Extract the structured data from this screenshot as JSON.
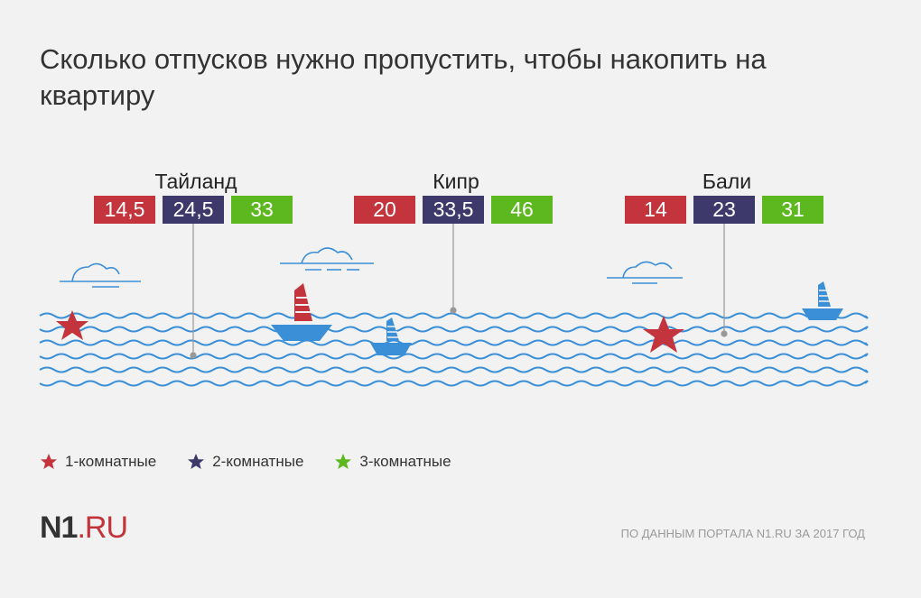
{
  "title": "Сколько отпусков нужно пропустить, чтобы накопить на квартиру",
  "colors": {
    "one_room": "#c4343c",
    "two_room": "#3d3a6b",
    "three_room": "#5cb81e",
    "water": "#3a8fd6",
    "boat": "#3a8fd6"
  },
  "chart_data": {
    "type": "table",
    "title": "Сколько отпусков нужно пропустить, чтобы накопить на квартиру",
    "categories": [
      "Тайланд",
      "Кипр",
      "Бали"
    ],
    "series": [
      {
        "name": "1-комнатные",
        "values": [
          14.5,
          20,
          14
        ],
        "labels": [
          "14,5",
          "20",
          "14"
        ]
      },
      {
        "name": "2-комнатные",
        "values": [
          24.5,
          33.5,
          23
        ],
        "labels": [
          "24,5",
          "33,5",
          "23"
        ]
      },
      {
        "name": "3-комнатные",
        "values": [
          33,
          46,
          31
        ],
        "labels": [
          "33",
          "46",
          "31"
        ]
      }
    ]
  },
  "legend": [
    {
      "label": "1-комнатные",
      "icon": "star-icon"
    },
    {
      "label": "2-комнатные",
      "icon": "star-icon"
    },
    {
      "label": "3-комнатные",
      "icon": "star-icon"
    }
  ],
  "logo": {
    "main": "N1",
    "suffix": ".RU"
  },
  "source": "ПО ДАННЫМ ПОРТАЛА N1.RU ЗА 2017 ГОД"
}
